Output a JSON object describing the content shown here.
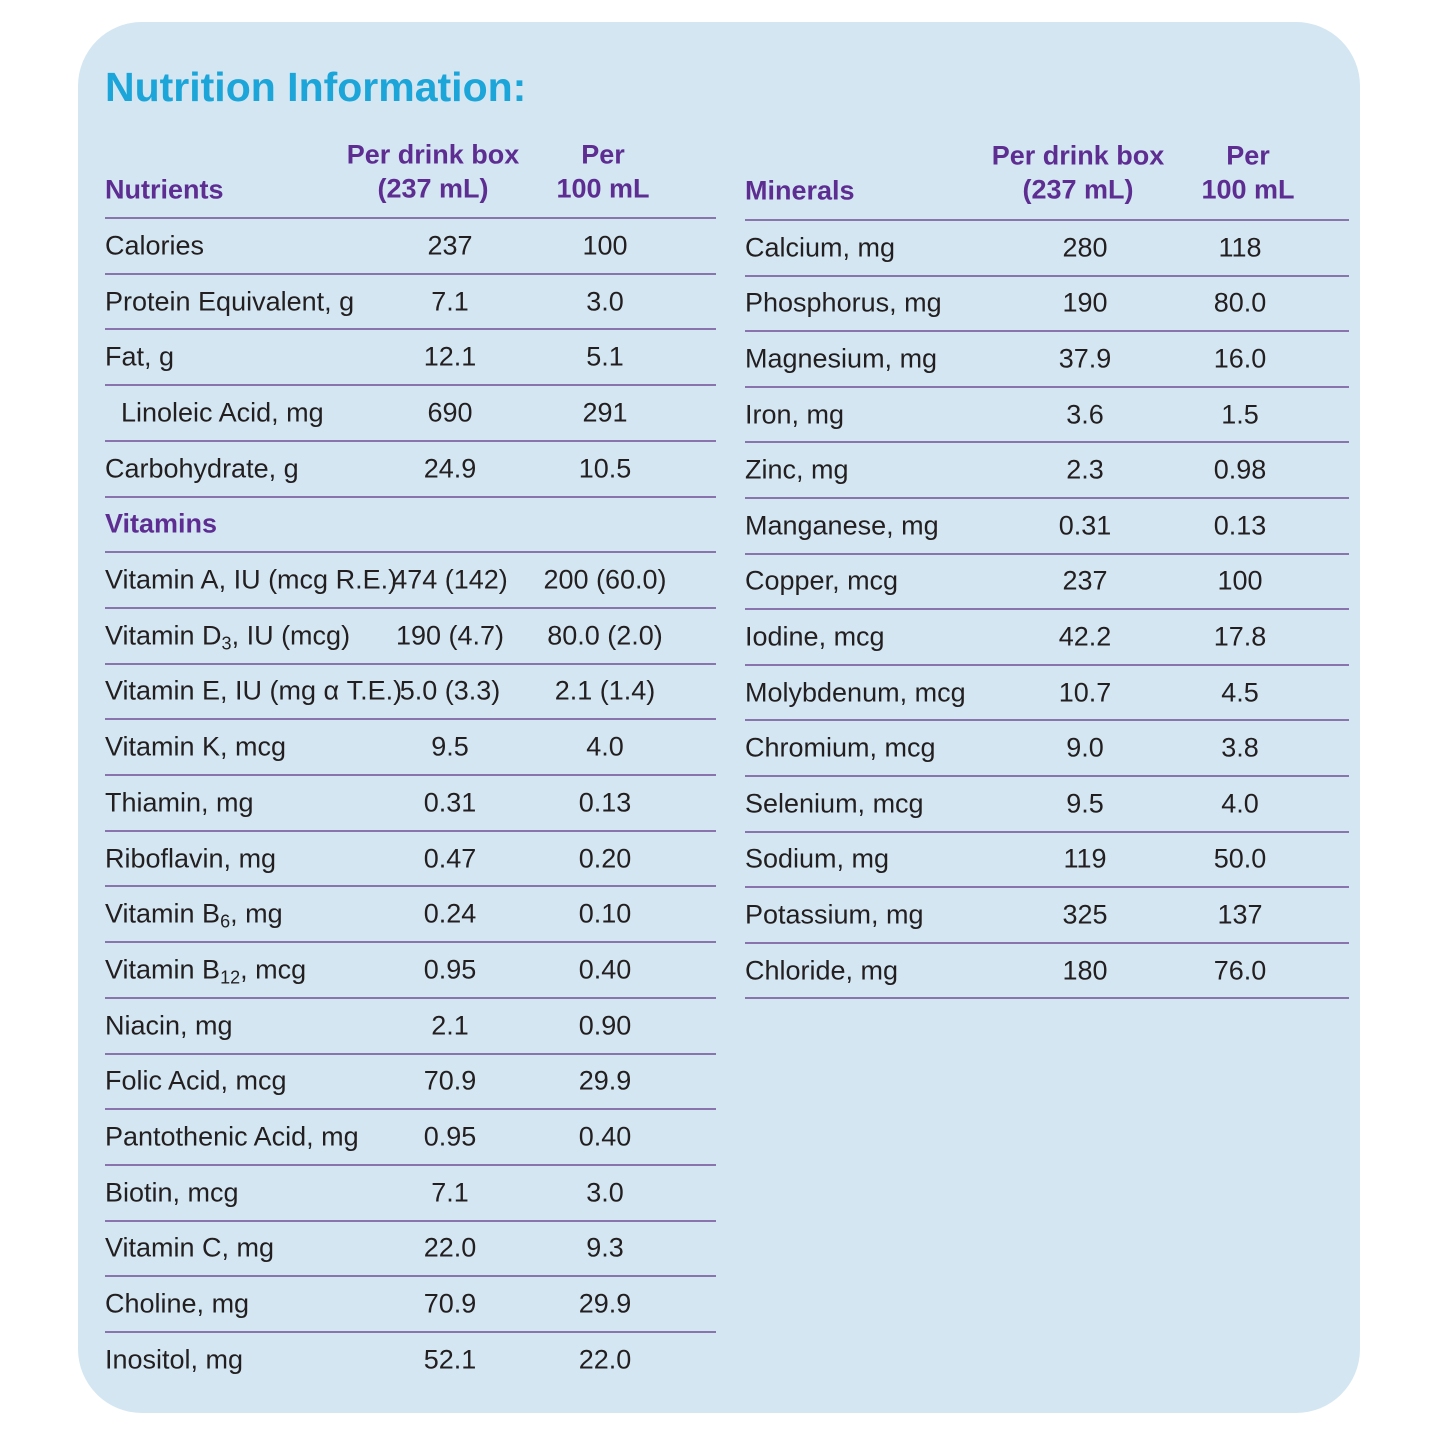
{
  "title": "Nutrition Information:",
  "left_table": {
    "header": {
      "name": "Nutrients",
      "col1": [
        "Per drink box",
        "(237 mL)"
      ],
      "col2": [
        "Per",
        "100 mL"
      ]
    },
    "sections": [
      {
        "rows": [
          {
            "name": "Calories",
            "values": [
              "237",
              "100"
            ]
          },
          {
            "name": "Protein Equivalent, g",
            "values": [
              "7.1",
              "3.0"
            ]
          },
          {
            "name": "Fat, g",
            "values": [
              "12.1",
              "5.1"
            ]
          },
          {
            "name": "Linoleic Acid, mg",
            "values": [
              "690",
              "291"
            ],
            "indent": true
          },
          {
            "name": "Carbohydrate, g",
            "values": [
              "24.9",
              "10.5"
            ]
          }
        ]
      },
      {
        "heading": "Vitamins",
        "rows": [
          {
            "name": "Vitamin A, IU (mcg R.E.)",
            "values": [
              "474 (142)",
              "200 (60.0)"
            ]
          },
          {
            "name": [
              "Vitamin D",
              "3",
              ", IU (mcg)"
            ],
            "values": [
              "190 (4.7)",
              "80.0 (2.0)"
            ]
          },
          {
            "name": "Vitamin E, IU (mg α T.E.)",
            "values": [
              "5.0 (3.3)",
              "2.1 (1.4)"
            ]
          },
          {
            "name": "Vitamin K, mcg",
            "values": [
              "9.5",
              "4.0"
            ]
          },
          {
            "name": "Thiamin, mg",
            "values": [
              "0.31",
              "0.13"
            ]
          },
          {
            "name": "Riboflavin, mg",
            "values": [
              "0.47",
              "0.20"
            ]
          },
          {
            "name": [
              "Vitamin B",
              "6",
              ", mg"
            ],
            "values": [
              "0.24",
              "0.10"
            ]
          },
          {
            "name": [
              "Vitamin B",
              "12",
              ", mcg"
            ],
            "values": [
              "0.95",
              "0.40"
            ]
          },
          {
            "name": "Niacin, mg",
            "values": [
              "2.1",
              "0.90"
            ]
          },
          {
            "name": "Folic Acid, mcg",
            "values": [
              "70.9",
              "29.9"
            ]
          },
          {
            "name": "Pantothenic Acid, mg",
            "values": [
              "0.95",
              "0.40"
            ]
          },
          {
            "name": "Biotin, mcg",
            "values": [
              "7.1",
              "3.0"
            ]
          },
          {
            "name": "Vitamin C, mg",
            "values": [
              "22.0",
              "9.3"
            ]
          },
          {
            "name": "Choline, mg",
            "values": [
              "70.9",
              "29.9"
            ]
          },
          {
            "name": "Inositol, mg",
            "values": [
              "52.1",
              "22.0"
            ]
          }
        ]
      }
    ]
  },
  "right_table": {
    "header": {
      "name": "Minerals",
      "col1": [
        "Per drink box",
        "(237 mL)"
      ],
      "col2": [
        "Per",
        "100 mL"
      ]
    },
    "sections": [
      {
        "rows": [
          {
            "name": "Calcium, mg",
            "values": [
              "280",
              "118"
            ]
          },
          {
            "name": "Phosphorus, mg",
            "values": [
              "190",
              "80.0"
            ]
          },
          {
            "name": "Magnesium, mg",
            "values": [
              "37.9",
              "16.0"
            ]
          },
          {
            "name": "Iron, mg",
            "values": [
              "3.6",
              "1.5"
            ]
          },
          {
            "name": "Zinc, mg",
            "values": [
              "2.3",
              "0.98"
            ]
          },
          {
            "name": "Manganese, mg",
            "values": [
              "0.31",
              "0.13"
            ]
          },
          {
            "name": "Copper, mcg",
            "values": [
              "237",
              "100"
            ]
          },
          {
            "name": "Iodine, mcg",
            "values": [
              "42.2",
              "17.8"
            ]
          },
          {
            "name": "Molybdenum, mcg",
            "values": [
              "10.7",
              "4.5"
            ]
          },
          {
            "name": "Chromium, mcg",
            "values": [
              "9.0",
              "3.8"
            ]
          },
          {
            "name": "Selenium, mcg",
            "values": [
              "9.5",
              "4.0"
            ]
          },
          {
            "name": "Sodium, mg",
            "values": [
              "119",
              "50.0"
            ]
          },
          {
            "name": "Potassium, mg",
            "values": [
              "325",
              "137"
            ]
          },
          {
            "name": "Chloride, mg",
            "values": [
              "180",
              "76.0"
            ]
          }
        ]
      }
    ]
  }
}
